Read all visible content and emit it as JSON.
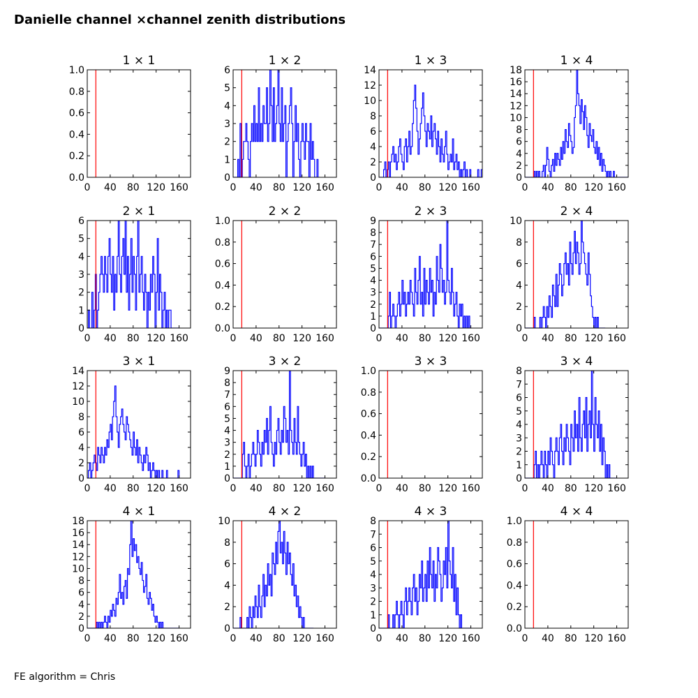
{
  "figure": {
    "title": "Danielle channel ×channel zenith distributions",
    "footer": "FE algorithm = Chris"
  },
  "colors": {
    "histogram": "#0000ff",
    "cut_line": "#ff0000",
    "axes": "#000000"
  },
  "chart_data": [
    {
      "type": "histogram",
      "title": "1 × 1",
      "xlim": [
        0,
        180
      ],
      "ylim": [
        0,
        1.0
      ],
      "yticks": [
        "0.0",
        "0.2",
        "0.4",
        "0.6",
        "0.8",
        "1.0"
      ],
      "xticks": [
        "0",
        "40",
        "80",
        "120",
        "160"
      ],
      "cut_x": 15,
      "bin_width": 2,
      "x_start": 0,
      "values": []
    },
    {
      "type": "histogram",
      "title": "1 × 2",
      "xlim": [
        0,
        180
      ],
      "ylim": [
        0,
        6
      ],
      "yticks": [
        "0",
        "1",
        "2",
        "3",
        "4",
        "5",
        "6"
      ],
      "xticks": [
        "0",
        "40",
        "80",
        "120",
        "160"
      ],
      "cut_x": 15,
      "bin_width": 2,
      "x_start": 0,
      "values": [
        0,
        0,
        0,
        0,
        1,
        0,
        3,
        0,
        1,
        2,
        2,
        3,
        2,
        1,
        0,
        2,
        3,
        2,
        4,
        2,
        3,
        2,
        5,
        2,
        3,
        2,
        4,
        3,
        3,
        5,
        2,
        3,
        6,
        4,
        2,
        5,
        2,
        3,
        4,
        6,
        3,
        2,
        5,
        2,
        3,
        4,
        0,
        2,
        3,
        4,
        5,
        3,
        0,
        2,
        4,
        2,
        3,
        1,
        0,
        2,
        3,
        2,
        1,
        3,
        2,
        2,
        0,
        3,
        1,
        2,
        1,
        0,
        0,
        1
      ]
    },
    {
      "type": "histogram",
      "title": "1 × 3",
      "xlim": [
        0,
        180
      ],
      "ylim": [
        0,
        14
      ],
      "yticks": [
        "0",
        "2",
        "4",
        "6",
        "8",
        "10",
        "12",
        "14"
      ],
      "xticks": [
        "0",
        "40",
        "80",
        "120",
        "160"
      ],
      "cut_x": 15,
      "bin_width": 2,
      "x_start": 0,
      "values": [
        0,
        0,
        0,
        0,
        1,
        2,
        0,
        1,
        2,
        0,
        2,
        3,
        4,
        2,
        3,
        1,
        2,
        4,
        5,
        3,
        2,
        1,
        4,
        5,
        2,
        4,
        6,
        3,
        4,
        7,
        10,
        12,
        9,
        6,
        3,
        5,
        7,
        9,
        11,
        8,
        6,
        4,
        7,
        6,
        5,
        8,
        4,
        6,
        7,
        5,
        3,
        6,
        4,
        2,
        5,
        3,
        2,
        4,
        6,
        3,
        1,
        2,
        3,
        2,
        5,
        1,
        2,
        3,
        1,
        2,
        0,
        1,
        0,
        1,
        2,
        0,
        1,
        0,
        0,
        1,
        0,
        0,
        0,
        0,
        0,
        0,
        1,
        0,
        0,
        1
      ]
    },
    {
      "type": "histogram",
      "title": "1 × 4",
      "xlim": [
        0,
        180
      ],
      "ylim": [
        0,
        18
      ],
      "yticks": [
        "0",
        "2",
        "4",
        "6",
        "8",
        "10",
        "12",
        "14",
        "16",
        "18"
      ],
      "xticks": [
        "0",
        "40",
        "80",
        "120",
        "160"
      ],
      "cut_x": 15,
      "bin_width": 2,
      "x_start": 0,
      "values": [
        0,
        0,
        0,
        0,
        0,
        0,
        0,
        0,
        1,
        0,
        1,
        0,
        1,
        0,
        0,
        1,
        2,
        0,
        2,
        5,
        3,
        1,
        0,
        2,
        3,
        1,
        4,
        2,
        4,
        3,
        2,
        5,
        3,
        6,
        4,
        8,
        6,
        5,
        9,
        7,
        6,
        4,
        5,
        10,
        12,
        18,
        14,
        12,
        9,
        13,
        11,
        8,
        12,
        10,
        7,
        5,
        9,
        7,
        6,
        8,
        5,
        4,
        6,
        3,
        5,
        2,
        4,
        1,
        3,
        2,
        1,
        0,
        1,
        0,
        1,
        0,
        0,
        1,
        0,
        0,
        0,
        0,
        0,
        0,
        0,
        0,
        0,
        0,
        0,
        0
      ]
    },
    {
      "type": "histogram",
      "title": "2 × 1",
      "xlim": [
        0,
        180
      ],
      "ylim": [
        0,
        6
      ],
      "yticks": [
        "0",
        "1",
        "2",
        "3",
        "4",
        "5",
        "6"
      ],
      "xticks": [
        "0",
        "40",
        "80",
        "120",
        "160"
      ],
      "cut_x": 15,
      "bin_width": 2,
      "x_start": 0,
      "values": [
        0,
        1,
        0,
        0,
        2,
        0,
        1,
        3,
        0,
        1,
        2,
        3,
        4,
        3,
        2,
        4,
        3,
        2,
        4,
        5,
        3,
        2,
        4,
        1,
        3,
        2,
        4,
        6,
        3,
        2,
        4,
        5,
        3,
        6,
        2,
        4,
        1,
        3,
        5,
        2,
        4,
        3,
        1,
        4,
        6,
        2,
        3,
        4,
        2,
        1,
        3,
        2,
        0,
        2,
        1,
        3,
        2,
        4,
        3,
        0,
        2,
        5,
        1,
        3,
        2,
        0,
        1,
        2,
        0,
        1,
        0,
        1,
        1,
        0,
        0,
        0,
        0,
        0,
        0,
        0
      ]
    },
    {
      "type": "histogram",
      "title": "2 × 2",
      "xlim": [
        0,
        180
      ],
      "ylim": [
        0,
        1.0
      ],
      "yticks": [
        "0.0",
        "0.2",
        "0.4",
        "0.6",
        "0.8",
        "1.0"
      ],
      "xticks": [
        "0",
        "40",
        "80",
        "120",
        "160"
      ],
      "cut_x": 15,
      "bin_width": 2,
      "x_start": 0,
      "values": []
    },
    {
      "type": "histogram",
      "title": "2 × 3",
      "xlim": [
        0,
        180
      ],
      "ylim": [
        0,
        9
      ],
      "yticks": [
        "0",
        "1",
        "2",
        "3",
        "4",
        "5",
        "6",
        "7",
        "8",
        "9"
      ],
      "xticks": [
        "0",
        "40",
        "80",
        "120",
        "160"
      ],
      "cut_x": 15,
      "bin_width": 2,
      "x_start": 0,
      "values": [
        0,
        0,
        0,
        0,
        0,
        0,
        0,
        0,
        1,
        3,
        0,
        1,
        2,
        1,
        0,
        1,
        2,
        3,
        1,
        2,
        4,
        2,
        3,
        1,
        2,
        3,
        2,
        4,
        3,
        2,
        1,
        5,
        3,
        2,
        4,
        6,
        2,
        3,
        1,
        5,
        2,
        4,
        3,
        2,
        5,
        3,
        4,
        1,
        3,
        2,
        6,
        4,
        3,
        7,
        5,
        3,
        4,
        2,
        3,
        9,
        4,
        3,
        2,
        5,
        3,
        1,
        2,
        3,
        1,
        0,
        2,
        1,
        2,
        0,
        1,
        0,
        1,
        0,
        1,
        0
      ]
    },
    {
      "type": "histogram",
      "title": "2 × 4",
      "xlim": [
        0,
        180
      ],
      "ylim": [
        0,
        10
      ],
      "yticks": [
        "0",
        "2",
        "4",
        "6",
        "8",
        "10"
      ],
      "xticks": [
        "0",
        "40",
        "80",
        "120",
        "160"
      ],
      "cut_x": 15,
      "bin_width": 2,
      "x_start": 0,
      "values": [
        0,
        0,
        0,
        0,
        0,
        0,
        0,
        0,
        1,
        0,
        0,
        0,
        0,
        1,
        0,
        1,
        2,
        1,
        0,
        2,
        1,
        3,
        2,
        1,
        4,
        3,
        2,
        5,
        2,
        4,
        6,
        5,
        3,
        4,
        6,
        7,
        5,
        6,
        4,
        8,
        6,
        5,
        7,
        9,
        6,
        8,
        7,
        5,
        6,
        10,
        8,
        7,
        6,
        5,
        4,
        7,
        5,
        3,
        2,
        1,
        0,
        1,
        0,
        1,
        0,
        0,
        0,
        0,
        0,
        0
      ]
    },
    {
      "type": "histogram",
      "title": "3 × 1",
      "xlim": [
        0,
        180
      ],
      "ylim": [
        0,
        14
      ],
      "yticks": [
        "0",
        "2",
        "4",
        "6",
        "8",
        "10",
        "12",
        "14"
      ],
      "xticks": [
        "0",
        "40",
        "80",
        "120",
        "160"
      ],
      "cut_x": 15,
      "bin_width": 2,
      "x_start": 0,
      "values": [
        0,
        1,
        2,
        0,
        1,
        2,
        3,
        2,
        1,
        4,
        3,
        2,
        4,
        3,
        2,
        4,
        3,
        5,
        4,
        6,
        7,
        5,
        8,
        10,
        12,
        8,
        6,
        4,
        7,
        8,
        9,
        7,
        6,
        5,
        8,
        7,
        6,
        5,
        4,
        3,
        6,
        4,
        3,
        5,
        2,
        4,
        3,
        2,
        1,
        3,
        2,
        4,
        3,
        1,
        2,
        0,
        1,
        2,
        1,
        0,
        1,
        0,
        1,
        0,
        0,
        1,
        0,
        0,
        0,
        1,
        0,
        0,
        0,
        0,
        0,
        0,
        0,
        0,
        0,
        1
      ]
    },
    {
      "type": "histogram",
      "title": "3 × 2",
      "xlim": [
        0,
        180
      ],
      "ylim": [
        0,
        9
      ],
      "yticks": [
        "0",
        "1",
        "2",
        "3",
        "4",
        "5",
        "6",
        "7",
        "8",
        "9"
      ],
      "xticks": [
        "0",
        "40",
        "80",
        "120",
        "160"
      ],
      "cut_x": 15,
      "bin_width": 2,
      "x_start": 0,
      "values": [
        0,
        0,
        0,
        0,
        0,
        0,
        0,
        0,
        2,
        3,
        1,
        0,
        1,
        2,
        0,
        1,
        2,
        3,
        2,
        1,
        2,
        4,
        3,
        2,
        1,
        3,
        2,
        4,
        3,
        5,
        2,
        4,
        6,
        3,
        2,
        1,
        3,
        2,
        4,
        5,
        3,
        2,
        4,
        3,
        6,
        5,
        3,
        4,
        2,
        9,
        4,
        3,
        2,
        5,
        3,
        2,
        6,
        3,
        2,
        1,
        2,
        3,
        1,
        2,
        0,
        1,
        0,
        1,
        0,
        1,
        0,
        0,
        0,
        0,
        0,
        0,
        0,
        0,
        0,
        0
      ]
    },
    {
      "type": "histogram",
      "title": "3 × 3",
      "xlim": [
        0,
        180
      ],
      "ylim": [
        0,
        1.0
      ],
      "yticks": [
        "0.0",
        "0.2",
        "0.4",
        "0.6",
        "0.8",
        "1.0"
      ],
      "xticks": [
        "0",
        "40",
        "80",
        "120",
        "160"
      ],
      "cut_x": 15,
      "bin_width": 2,
      "x_start": 0,
      "values": []
    },
    {
      "type": "histogram",
      "title": "3 × 4",
      "xlim": [
        0,
        180
      ],
      "ylim": [
        0,
        8
      ],
      "yticks": [
        "0",
        "1",
        "2",
        "3",
        "4",
        "5",
        "6",
        "7",
        "8"
      ],
      "xticks": [
        "0",
        "40",
        "80",
        "120",
        "160"
      ],
      "cut_x": 15,
      "bin_width": 2,
      "x_start": 0,
      "values": [
        0,
        0,
        0,
        0,
        0,
        0,
        0,
        0,
        1,
        2,
        0,
        1,
        0,
        1,
        2,
        1,
        0,
        2,
        1,
        0,
        2,
        1,
        3,
        2,
        1,
        0,
        2,
        3,
        2,
        1,
        3,
        4,
        2,
        1,
        3,
        2,
        4,
        3,
        2,
        1,
        4,
        3,
        2,
        5,
        3,
        4,
        2,
        6,
        3,
        2,
        4,
        5,
        3,
        6,
        2,
        4,
        5,
        3,
        8,
        4,
        2,
        6,
        4,
        3,
        5,
        2,
        4,
        1,
        3,
        2,
        0,
        1,
        0,
        1,
        0,
        0,
        0,
        0,
        0,
        0
      ]
    },
    {
      "type": "histogram",
      "title": "4 × 1",
      "xlim": [
        0,
        180
      ],
      "ylim": [
        0,
        18
      ],
      "yticks": [
        "0",
        "2",
        "4",
        "6",
        "8",
        "10",
        "12",
        "14",
        "16",
        "18"
      ],
      "xticks": [
        "0",
        "40",
        "80",
        "120",
        "160"
      ],
      "cut_x": 15,
      "bin_width": 2,
      "x_start": 0,
      "values": [
        0,
        0,
        0,
        0,
        0,
        0,
        0,
        0,
        1,
        0,
        1,
        0,
        1,
        0,
        1,
        2,
        1,
        0,
        2,
        1,
        3,
        2,
        4,
        3,
        2,
        5,
        4,
        6,
        9,
        5,
        6,
        4,
        7,
        8,
        5,
        10,
        9,
        14,
        18,
        12,
        15,
        13,
        14,
        11,
        12,
        10,
        9,
        11,
        8,
        6,
        7,
        9,
        5,
        4,
        6,
        5,
        3,
        4,
        2,
        1,
        2,
        1,
        0,
        1,
        0,
        1,
        0,
        0,
        0,
        0,
        0,
        0,
        0,
        0,
        0,
        0,
        0,
        0,
        0,
        0
      ]
    },
    {
      "type": "histogram",
      "title": "4 × 2",
      "xlim": [
        0,
        180
      ],
      "ylim": [
        0,
        10
      ],
      "yticks": [
        "0",
        "2",
        "4",
        "6",
        "8",
        "10"
      ],
      "xticks": [
        "0",
        "40",
        "80",
        "120",
        "160"
      ],
      "cut_x": 15,
      "bin_width": 2,
      "x_start": 0,
      "values": [
        0,
        0,
        0,
        0,
        0,
        0,
        1,
        0,
        0,
        0,
        0,
        0,
        1,
        0,
        2,
        1,
        0,
        2,
        1,
        3,
        2,
        1,
        4,
        2,
        1,
        3,
        5,
        2,
        4,
        3,
        6,
        4,
        5,
        3,
        7,
        6,
        5,
        8,
        6,
        9,
        10,
        7,
        8,
        6,
        9,
        7,
        5,
        8,
        6,
        7,
        5,
        4,
        6,
        3,
        4,
        2,
        3,
        1,
        2,
        1,
        0,
        1,
        0,
        0,
        0,
        0,
        0,
        0,
        0,
        0
      ]
    },
    {
      "type": "histogram",
      "title": "4 × 3",
      "xlim": [
        0,
        180
      ],
      "ylim": [
        0,
        8
      ],
      "yticks": [
        "0",
        "1",
        "2",
        "3",
        "4",
        "5",
        "6",
        "7",
        "8"
      ],
      "xticks": [
        "0",
        "40",
        "80",
        "120",
        "160"
      ],
      "cut_x": 15,
      "bin_width": 2,
      "x_start": 0,
      "values": [
        0,
        0,
        0,
        0,
        0,
        0,
        0,
        0,
        1,
        0,
        0,
        0,
        1,
        0,
        1,
        2,
        1,
        0,
        1,
        2,
        1,
        0,
        2,
        3,
        1,
        2,
        3,
        2,
        1,
        3,
        4,
        2,
        3,
        1,
        2,
        4,
        3,
        5,
        2,
        3,
        4,
        2,
        5,
        3,
        6,
        4,
        3,
        5,
        2,
        4,
        3,
        6,
        5,
        4,
        2,
        3,
        5,
        4,
        6,
        3,
        8,
        5,
        4,
        3,
        6,
        2,
        4,
        1,
        3,
        1,
        0,
        1,
        0,
        0,
        0,
        0,
        0,
        0,
        0,
        0
      ]
    },
    {
      "type": "histogram",
      "title": "4 × 4",
      "xlim": [
        0,
        180
      ],
      "ylim": [
        0,
        1.0
      ],
      "yticks": [
        "0.0",
        "0.2",
        "0.4",
        "0.6",
        "0.8",
        "1.0"
      ],
      "xticks": [
        "0",
        "40",
        "80",
        "120",
        "160"
      ],
      "cut_x": 15,
      "bin_width": 2,
      "x_start": 0,
      "values": []
    }
  ]
}
